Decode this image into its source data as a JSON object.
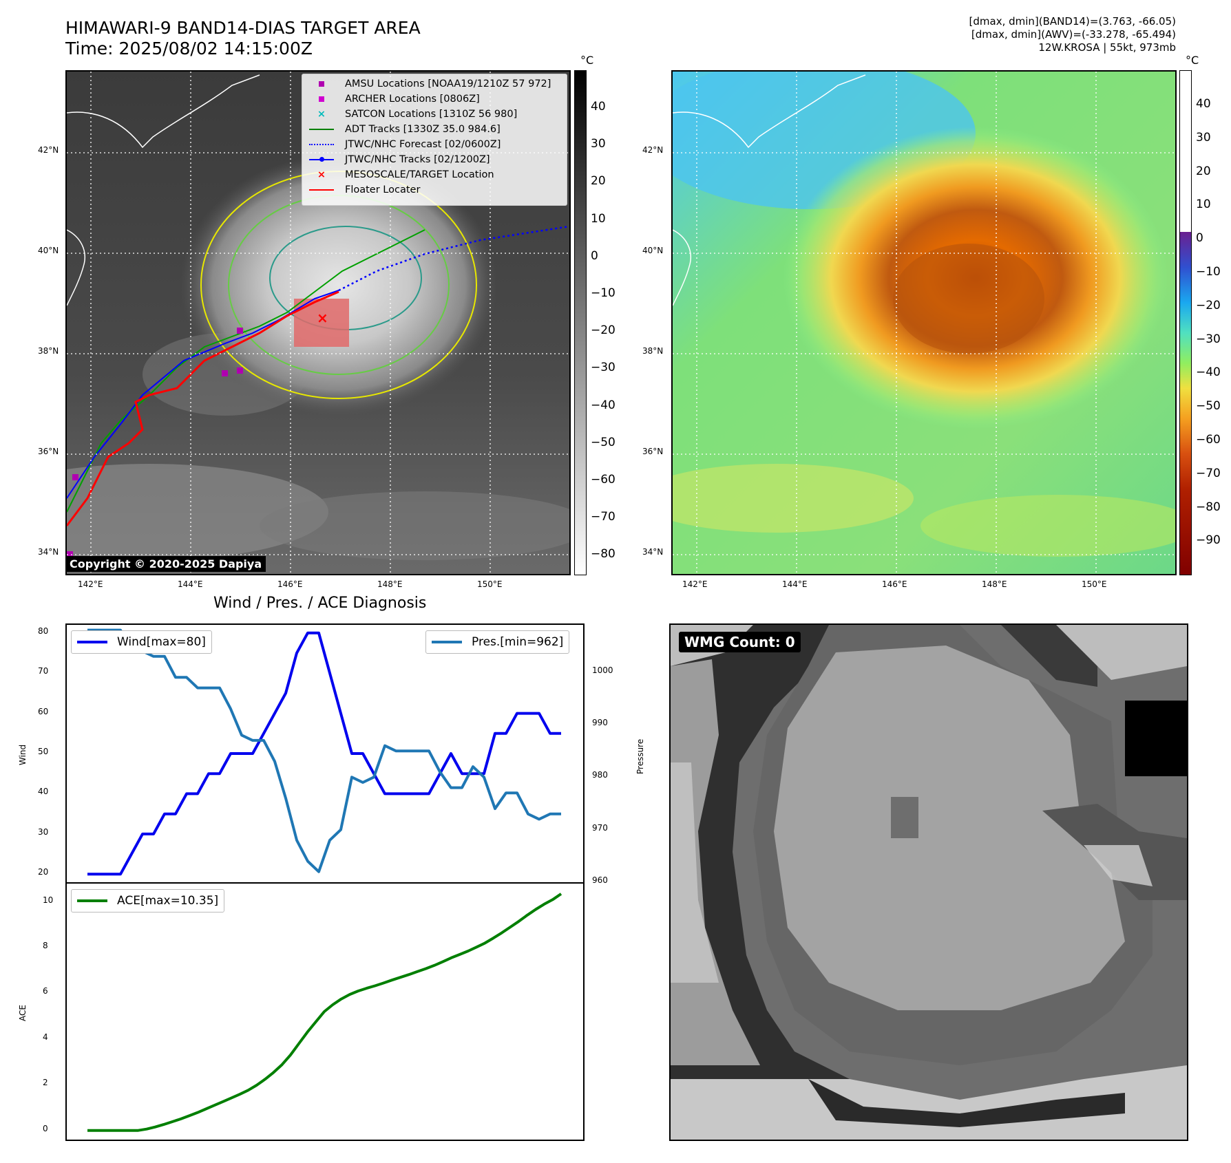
{
  "header": {
    "title_line1": "HIMAWARI-9 BAND14-DIAS TARGET AREA",
    "title_line2": "Time: 2025/08/02 14:15:00Z",
    "stats_line1": "[dmax, dmin](BAND14)=(3.763, -66.05)",
    "stats_line2": "[dmax, dmin](AWV)=(-33.278, -65.494)",
    "stats_line3": "12W.KROSA | 55kt, 973mb"
  },
  "map": {
    "lat_ticks": [
      "42°N",
      "40°N",
      "38°N",
      "36°N",
      "34°N"
    ],
    "lon_ticks": [
      "142°E",
      "144°E",
      "146°E",
      "148°E",
      "150°E"
    ],
    "colorbar_unit": "°C",
    "gray_colorbar_ticks": [
      "40",
      "30",
      "20",
      "10",
      "0",
      "−10",
      "−20",
      "−30",
      "−40",
      "−50",
      "−60",
      "−70",
      "−80"
    ],
    "color_colorbar_ticks": [
      "40",
      "30",
      "20",
      "10",
      "0",
      "−10",
      "−20",
      "−30",
      "−40",
      "−50",
      "−60",
      "−70",
      "−80",
      "−90"
    ],
    "copyright": "Copyright © 2020-2025 Dapiya"
  },
  "legend": {
    "amsu": "AMSU Locations [NOAA19/1210Z 57 972]",
    "archer": "ARCHER Locations [0806Z]",
    "satcon": "SATCON Locations [1310Z 56 980]",
    "adt": "ADT Tracks [1330Z 35.0 984.6]",
    "forecast": "JTWC/NHC Forecast [02/0600Z]",
    "tracks": "JTWC/NHC Tracks [02/1200Z]",
    "target": "MESOSCALE/TARGET Location",
    "floater": "Floater Locater"
  },
  "diagnosis": {
    "title": "Wind / Pres. / ACE Diagnosis",
    "wind_ylabel": "Wind",
    "pres_ylabel": "Pressure",
    "ace_ylabel": "ACE",
    "wind_legend": "Wind[max=80]",
    "pres_legend": "Pres.[min=962]",
    "ace_legend": "ACE[max=10.35]",
    "wmg_label": "WMG Count: 0",
    "colors": {
      "wind": "#0000ee",
      "pressure": "#1f77b4",
      "ace": "#007f00"
    }
  },
  "chart_data": [
    {
      "type": "line",
      "title": "Wind / Pres. / ACE Diagnosis",
      "xlabel": "",
      "ylabel": "Wind",
      "ylim": [
        18,
        82
      ],
      "yticks": [
        20,
        30,
        40,
        50,
        60,
        70,
        80
      ],
      "series": [
        {
          "name": "Wind[max=80]",
          "axis": "left",
          "values": [
            20,
            20,
            20,
            20,
            25,
            30,
            30,
            35,
            35,
            40,
            40,
            45,
            45,
            50,
            50,
            50,
            55,
            60,
            65,
            75,
            80,
            80,
            70,
            60,
            50,
            50,
            45,
            40,
            40,
            40,
            40,
            40,
            45,
            50,
            45,
            45,
            45,
            55,
            55,
            60,
            60,
            60,
            55,
            55
          ]
        },
        {
          "name": "Pres.[min=962]",
          "axis": "right",
          "ylim": [
            960,
            1009
          ],
          "yticks": [
            960,
            970,
            980,
            990,
            1000
          ],
          "values": [
            1008,
            1008,
            1008,
            1008,
            1004,
            1004,
            1003,
            1003,
            999,
            999,
            997,
            997,
            997,
            993,
            988,
            987,
            987,
            983,
            976,
            968,
            964,
            962,
            968,
            970,
            980,
            979,
            980,
            986,
            985,
            985,
            985,
            985,
            981,
            978,
            978,
            982,
            980,
            974,
            977,
            977,
            973,
            972,
            973,
            973
          ]
        }
      ]
    },
    {
      "type": "line",
      "ylabel": "ACE",
      "ylim": [
        -0.4,
        10.8
      ],
      "yticks": [
        0,
        2,
        4,
        6,
        8,
        10
      ],
      "series": [
        {
          "name": "ACE[max=10.35]",
          "values": [
            0,
            0,
            0,
            0,
            0,
            0,
            0,
            0.06,
            0.15,
            0.26,
            0.38,
            0.5,
            0.64,
            0.78,
            0.94,
            1.1,
            1.26,
            1.42,
            1.58,
            1.76,
            1.98,
            2.24,
            2.54,
            2.88,
            3.3,
            3.8,
            4.3,
            4.75,
            5.2,
            5.5,
            5.75,
            5.95,
            6.1,
            6.22,
            6.33,
            6.45,
            6.58,
            6.7,
            6.82,
            6.95,
            7.08,
            7.22,
            7.38,
            7.55,
            7.7,
            7.85,
            8.02,
            8.2,
            8.42,
            8.65,
            8.9,
            9.15,
            9.42,
            9.67,
            9.9,
            10.1,
            10.35
          ]
        }
      ]
    }
  ]
}
